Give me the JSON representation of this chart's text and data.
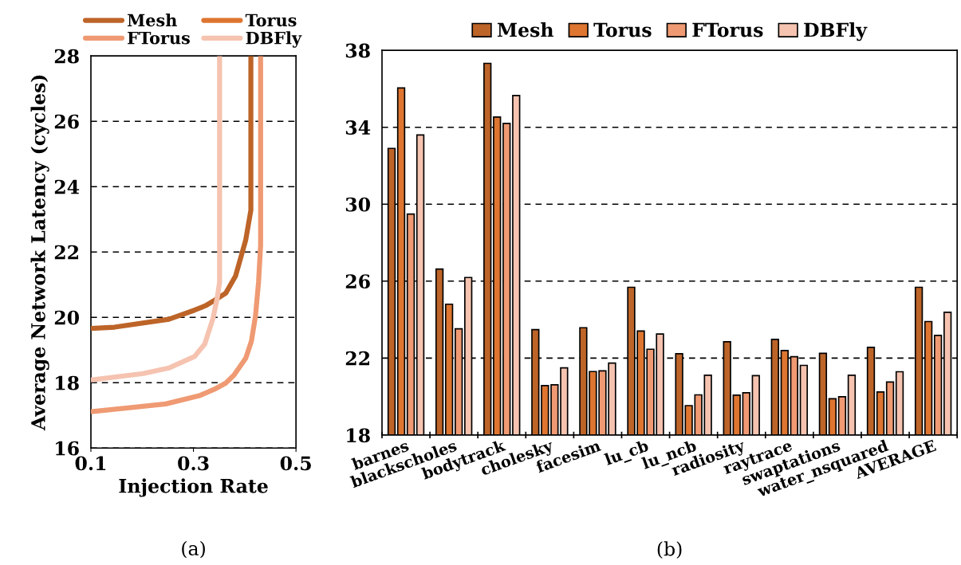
{
  "chart_data": [
    {
      "type": "line",
      "xlabel": "Injection Rate",
      "ylabel": "Average Network Latency (cycles)",
      "xlim": [
        0.1,
        0.5
      ],
      "xticks": [
        0.1,
        0.3,
        0.5
      ],
      "ylim": [
        16,
        28
      ],
      "yticks": [
        16,
        18,
        20,
        22,
        24,
        26,
        28
      ],
      "grid": "y",
      "legend": "top",
      "marker": "none",
      "line_style": "solid",
      "annotations": [
        "(a)"
      ],
      "series": [
        {
          "name": "Mesh",
          "color": "#bd6428",
          "x": [
            0.1,
            0.146,
            0.252,
            0.302,
            0.324,
            0.341,
            0.363,
            0.382,
            0.402,
            0.412,
            0.412
          ],
          "values": [
            19.66,
            19.7,
            19.94,
            20.22,
            20.36,
            20.52,
            20.74,
            21.26,
            22.37,
            23.28,
            28
          ]
        },
        {
          "name": "Torus",
          "color": "#de7530"
        },
        {
          "name": "FTorus",
          "color": "#ef9a73",
          "x": [
            0.1,
            0.246,
            0.313,
            0.341,
            0.363,
            0.379,
            0.402,
            0.413,
            0.421,
            0.427,
            0.431,
            0.431
          ],
          "values": [
            17.11,
            17.35,
            17.61,
            17.8,
            17.99,
            18.23,
            18.75,
            19.27,
            20.04,
            21.08,
            22.2,
            28
          ]
        },
        {
          "name": "DBFly",
          "color": "#f5c3b0",
          "x": [
            0.1,
            0.202,
            0.252,
            0.302,
            0.322,
            0.338,
            0.346,
            0.351,
            0.351
          ],
          "values": [
            18.08,
            18.28,
            18.45,
            18.8,
            19.18,
            19.96,
            20.56,
            21.07,
            28
          ]
        }
      ]
    },
    {
      "type": "bar",
      "categories": [
        "barnes",
        "blackscholes",
        "bodytrack",
        "cholesky",
        "facesim",
        "lu_cb",
        "lu_ncb",
        "radiosity",
        "raytrace",
        "swaptations",
        "water_nsquared",
        "AVERAGE"
      ],
      "ylim": [
        18,
        38
      ],
      "yticks": [
        18,
        22,
        26,
        30,
        34,
        38
      ],
      "grid": "y",
      "legend": "top",
      "annotations": [
        "(b)"
      ],
      "series": [
        {
          "name": "Mesh",
          "color": "#bd6428",
          "values": [
            32.9,
            26.63,
            37.32,
            23.48,
            23.58,
            25.68,
            22.23,
            22.85,
            22.97,
            22.25,
            22.56,
            25.68
          ]
        },
        {
          "name": "Torus",
          "color": "#de7530",
          "values": [
            36.04,
            24.8,
            34.53,
            20.57,
            21.3,
            23.41,
            19.53,
            20.07,
            22.39,
            19.89,
            20.24,
            23.9
          ]
        },
        {
          "name": "FTorus",
          "color": "#ef9a73",
          "values": [
            29.49,
            23.52,
            34.2,
            20.61,
            21.34,
            22.46,
            20.09,
            20.2,
            22.07,
            19.99,
            20.76,
            23.18
          ]
        },
        {
          "name": "DBFly",
          "color": "#f5c3b0",
          "values": [
            33.6,
            26.19,
            35.65,
            21.49,
            21.74,
            23.25,
            21.11,
            21.09,
            21.62,
            21.11,
            21.29,
            24.38
          ]
        }
      ]
    }
  ]
}
